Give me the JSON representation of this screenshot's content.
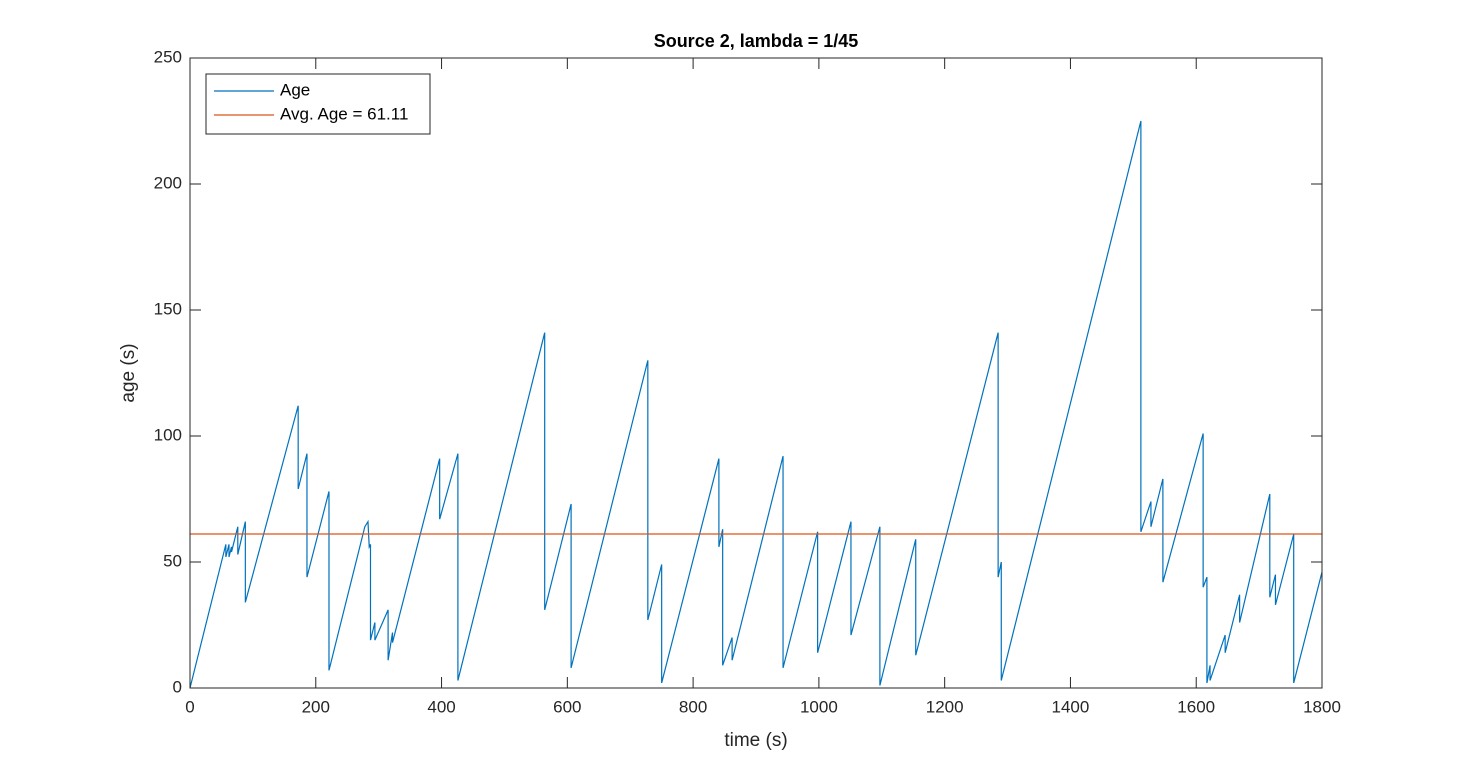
{
  "chart_data": {
    "type": "line",
    "title": "Source 2, lambda = 1/45",
    "xlabel": "time (s)",
    "ylabel": "age (s)",
    "xlim": [
      0,
      1800
    ],
    "xticks": [
      0,
      200,
      400,
      600,
      800,
      1000,
      1200,
      1400,
      1600,
      1800
    ],
    "ylim": [
      0,
      250
    ],
    "yticks": [
      0,
      50,
      100,
      150,
      200,
      250
    ],
    "legend": "northwest",
    "series": [
      {
        "name": "Age",
        "color": "#0072bd",
        "x": [
          0,
          57,
          57,
          62,
          62,
          66,
          66,
          76,
          76,
          88,
          88,
          172,
          172,
          186,
          186,
          221,
          221,
          278,
          283,
          285,
          287,
          287,
          294,
          294,
          315,
          315,
          322,
          322,
          397,
          397,
          426,
          426,
          564,
          564,
          606,
          606,
          728,
          728,
          750,
          750,
          841,
          841,
          847,
          847,
          862,
          862,
          943,
          943,
          998,
          998,
          1051,
          1051,
          1097,
          1097,
          1154,
          1154,
          1285,
          1285,
          1290,
          1290,
          1512,
          1512,
          1528,
          1528,
          1547,
          1547,
          1611,
          1611,
          1617,
          1617,
          1622,
          1622,
          1646,
          1646,
          1669,
          1669,
          1717,
          1717,
          1726,
          1726,
          1755,
          1755,
          1800
        ],
        "values": [
          0,
          57,
          52,
          57,
          52,
          56,
          54,
          64,
          53,
          66,
          34,
          112,
          79,
          93,
          44,
          78,
          7,
          64,
          66,
          56,
          57,
          19,
          26,
          19,
          31,
          11,
          22,
          18,
          91,
          67,
          93,
          3,
          141,
          31,
          73,
          8,
          130,
          27,
          49,
          2,
          91,
          56,
          63,
          9,
          20,
          11,
          92,
          8,
          62,
          14,
          66,
          21,
          64,
          1,
          59,
          13,
          141,
          44,
          50,
          3,
          225,
          62,
          74,
          64,
          83,
          42,
          101,
          40,
          44,
          2,
          9,
          3,
          21,
          14,
          37,
          26,
          77,
          36,
          45,
          33,
          61,
          2,
          46
        ]
      },
      {
        "name": "Avg. Age = 61.11",
        "color": "#d95319",
        "x": [
          0,
          1800
        ],
        "values": [
          61.11,
          61.11
        ]
      }
    ]
  }
}
